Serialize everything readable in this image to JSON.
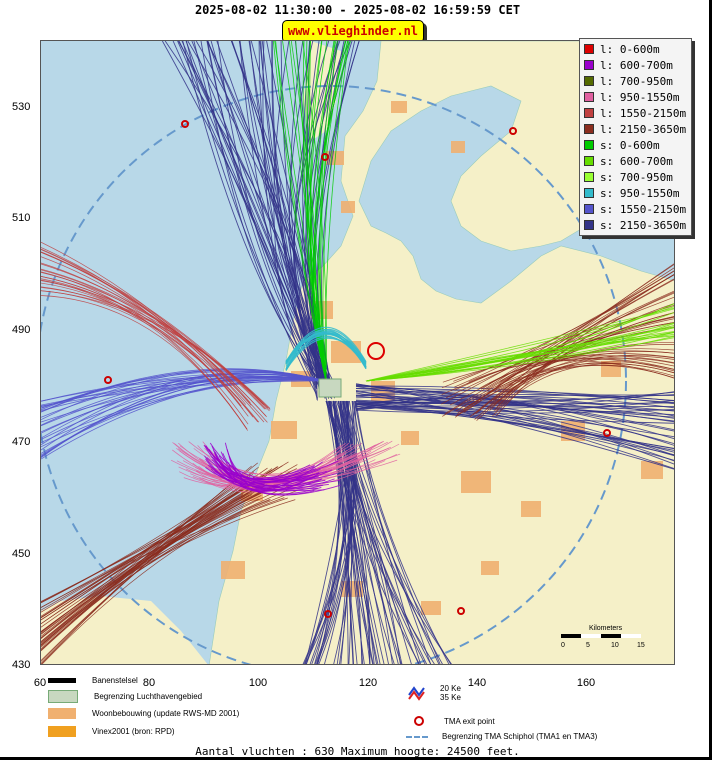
{
  "header": {
    "title": "2025-08-02 11:30:00 - 2025-08-02 16:59:59 CET",
    "site_badge": "www.vlieghinder.nl"
  },
  "axes": {
    "y_ticks": [
      "530",
      "510",
      "490",
      "470",
      "450",
      "430"
    ],
    "x_ticks": [
      "60",
      "80",
      "100",
      "120",
      "140",
      "160"
    ],
    "x_range": [
      60,
      176
    ],
    "y_range": [
      430,
      541
    ]
  },
  "legend": {
    "items": [
      {
        "label": "l: 0-600m",
        "color": "#dd0000"
      },
      {
        "label": "l: 600-700m",
        "color": "#9900cc"
      },
      {
        "label": "l: 700-950m",
        "color": "#556b00"
      },
      {
        "label": "l: 950-1550m",
        "color": "#e060a0"
      },
      {
        "label": "l: 1550-2150m",
        "color": "#c04040"
      },
      {
        "label": "l: 2150-3650m",
        "color": "#8b2d1f"
      },
      {
        "label": "s: 0-600m",
        "color": "#00cc00"
      },
      {
        "label": "s: 600-700m",
        "color": "#66dd00"
      },
      {
        "label": "s: 700-950m",
        "color": "#99ff33"
      },
      {
        "label": "s: 950-1550m",
        "color": "#33bbcc"
      },
      {
        "label": "s: 1550-2150m",
        "color": "#5555cc"
      },
      {
        "label": "s: 2150-3650m",
        "color": "#333388"
      }
    ]
  },
  "scale_bar": {
    "label": "Kilometers",
    "ticks": [
      "0",
      "5",
      "10",
      "15"
    ]
  },
  "map_key": {
    "banenstelsel": "Banenstelsel",
    "luchthaven": "Begrenzing Luchthavengebied",
    "woonbebouwing": "Woonbebouwing (update RWS-MD 2001)",
    "vinex": "Vinex2001 (bron: RPD)",
    "ke20": "20 Ke",
    "ke35": "35 Ke",
    "tma_exit": "TMA exit point",
    "tma_boundary": "Begrenzing TMA Schiphol  (TMA1 en TMA3)"
  },
  "footer": {
    "summary": "Aantal vluchten : 630 Maximum hoogte: 24500 feet."
  },
  "colors": {
    "sea": "#b8d8e8",
    "land": "#f5f0c8",
    "urban": "#f0b070",
    "badge_bg": "#ffff00",
    "badge_text": "#cc0000"
  }
}
